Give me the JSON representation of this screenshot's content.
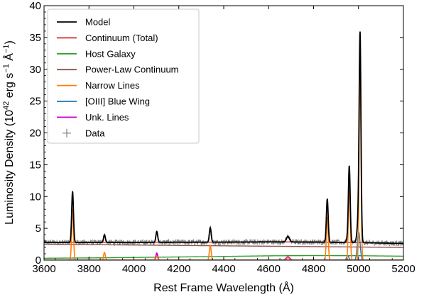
{
  "chart_data": {
    "type": "line",
    "xlabel": "Rest Frame Wavelength (Å)",
    "ylabel_parts": [
      "Luminosity Density (10",
      "42",
      " erg s",
      "−1",
      " Å",
      "−1",
      ")"
    ],
    "xlim": [
      3600,
      5200
    ],
    "ylim": [
      0,
      40
    ],
    "x_ticks": [
      3600,
      3800,
      4000,
      4200,
      4400,
      4600,
      4800,
      5000,
      5200
    ],
    "y_ticks": [
      0,
      5,
      10,
      15,
      20,
      25,
      30,
      35,
      40
    ],
    "legend_position": "top-left",
    "colors": {
      "model": "#000000",
      "continuum_total": "#d62728",
      "host_galaxy": "#2ca02c",
      "power_law": "#8c564b",
      "narrow_lines": "#ff7f0e",
      "oiii_blue_wing": "#1f77b4",
      "unk_lines": "#cc00cc",
      "data": "#808080"
    },
    "legend": [
      {
        "key": "model",
        "label": "Model"
      },
      {
        "key": "continuum_total",
        "label": "Continuum (Total)"
      },
      {
        "key": "host_galaxy",
        "label": "Host Galaxy"
      },
      {
        "key": "power_law",
        "label": "Power-Law Continuum"
      },
      {
        "key": "narrow_lines",
        "label": "Narrow Lines"
      },
      {
        "key": "oiii_blue_wing",
        "label": "[OIII] Blue Wing"
      },
      {
        "key": "unk_lines",
        "label": "Unk. Lines"
      },
      {
        "key": "data",
        "label": "Data"
      }
    ],
    "series": {
      "host_galaxy": {
        "x": [
          3600,
          3800,
          4000,
          4200,
          4400,
          4600,
          4800,
          5000,
          5200
        ],
        "y": [
          0.3,
          0.35,
          0.42,
          0.5,
          0.58,
          0.68,
          0.72,
          0.7,
          0.62
        ]
      },
      "power_law": {
        "x": [
          3600,
          5200
        ],
        "y": [
          2.5,
          2.0
        ]
      },
      "narrow_lines": [
        {
          "center": 3727,
          "peak": 8.0,
          "width": 4
        },
        {
          "center": 3869,
          "peak": 1.2,
          "width": 4
        },
        {
          "center": 4102,
          "peak": 0.6,
          "width": 4
        },
        {
          "center": 4340,
          "peak": 2.3,
          "width": 4
        },
        {
          "center": 4686,
          "peak": 0.4,
          "width": 5
        },
        {
          "center": 4861,
          "peak": 6.8,
          "width": 4
        },
        {
          "center": 4959,
          "peak": 11.8,
          "width": 4
        },
        {
          "center": 5007,
          "peak": 30.5,
          "width": 4
        }
      ],
      "oiii_blue_wing": [
        {
          "center": 4952,
          "peak": 0.7,
          "width": 5
        },
        {
          "center": 5001,
          "peak": 4.4,
          "width": 6
        }
      ],
      "unk_lines": [
        {
          "center": 4102,
          "peak": 1.1,
          "width": 4
        },
        {
          "center": 4686,
          "peak": 0.5,
          "width": 8
        }
      ]
    }
  }
}
